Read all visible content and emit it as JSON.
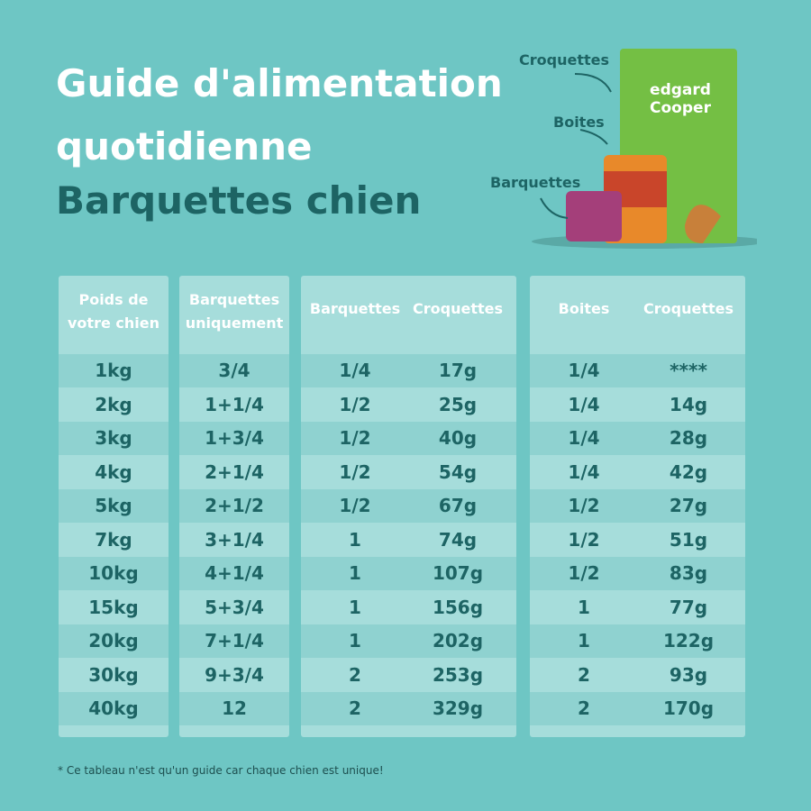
{
  "header": {
    "title_lines": [
      "Guide d'alimentation",
      "quotidienne"
    ],
    "subtitle": "Barquettes chien"
  },
  "products": {
    "labels": [
      "Croquettes",
      "Boites",
      "Barquettes"
    ],
    "brand": "edgard Cooper"
  },
  "table": {
    "headers": [
      "Poids de votre chien",
      "Barquettes uniquement",
      "Barquettes",
      "Croquettes",
      "Boites",
      "Croquettes"
    ],
    "rows": [
      [
        "1kg",
        "3/4",
        "1/4",
        "17g",
        "1/4",
        "****"
      ],
      [
        "2kg",
        "1+1/4",
        "1/2",
        "25g",
        "1/4",
        "14g"
      ],
      [
        "3kg",
        "1+3/4",
        "1/2",
        "40g",
        "1/4",
        "28g"
      ],
      [
        "4kg",
        "2+1/4",
        "1/2",
        "54g",
        "1/4",
        "42g"
      ],
      [
        "5kg",
        "2+1/2",
        "1/2",
        "67g",
        "1/2",
        "27g"
      ],
      [
        "7kg",
        "3+1/4",
        "1",
        "74g",
        "1/2",
        "51g"
      ],
      [
        "10kg",
        "4+1/4",
        "1",
        "107g",
        "1/2",
        "83g"
      ],
      [
        "15kg",
        "5+3/4",
        "1",
        "156g",
        "1",
        "77g"
      ],
      [
        "20kg",
        "7+1/4",
        "1",
        "202g",
        "1",
        "122g"
      ],
      [
        "30kg",
        "9+3/4",
        "2",
        "253g",
        "2",
        "93g"
      ],
      [
        "40kg",
        "12",
        "2",
        "329g",
        "2",
        "170g"
      ]
    ]
  },
  "footnote": "* Ce tableau n'est qu'un guide car chaque chien est unique!"
}
